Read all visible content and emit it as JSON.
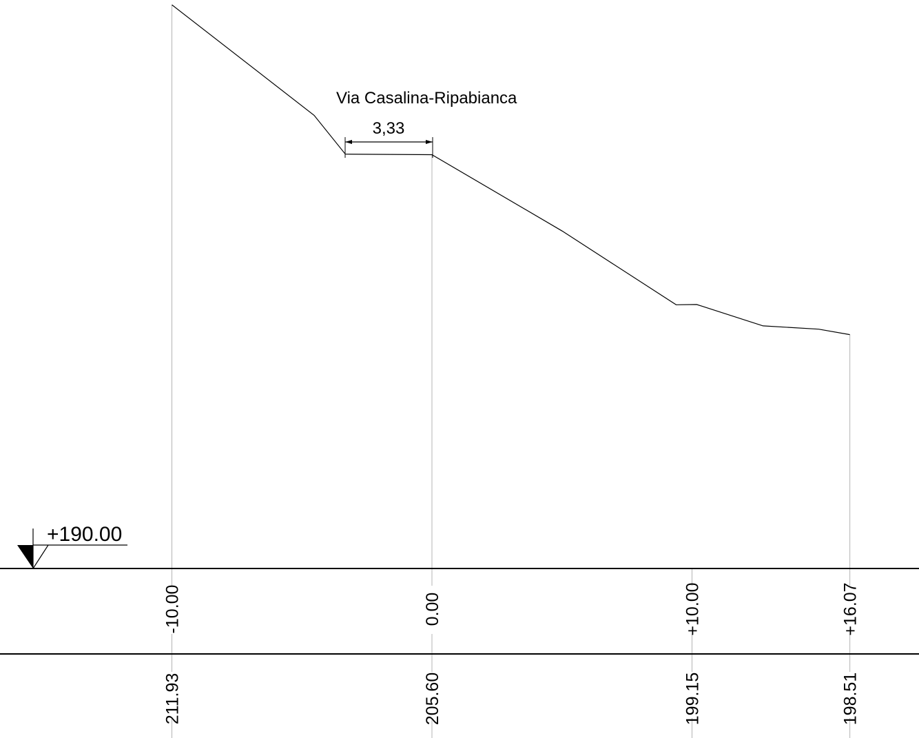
{
  "section": {
    "road_name": "Via Casalina-Ripabianca",
    "width_dimension": "3,33",
    "reference_level": "+190.00",
    "stations": [
      {
        "distance": -10.0,
        "distance_label": "-10.00",
        "elevation_label": "211.93"
      },
      {
        "distance": 0.0,
        "distance_label": "0.00",
        "elevation_label": "205.60"
      },
      {
        "distance": 10.0,
        "distance_label": "+10.00",
        "elevation_label": "199.15"
      },
      {
        "distance": 16.07,
        "distance_label": "+16.07",
        "elevation_label": "198.51"
      }
    ],
    "terrain_profile": [
      {
        "distance": -10.0,
        "elevation": 211.93
      },
      {
        "distance": -4.53,
        "elevation": 207.63
      },
      {
        "distance": -3.33,
        "elevation": 206.12
      },
      {
        "distance": 0.0,
        "elevation": 206.1
      },
      {
        "distance": 5.01,
        "elevation": 203.13
      },
      {
        "distance": 9.39,
        "elevation": 200.26
      },
      {
        "distance": 10.18,
        "elevation": 200.27
      },
      {
        "distance": 12.73,
        "elevation": 199.44
      },
      {
        "distance": 14.87,
        "elevation": 199.31
      },
      {
        "distance": 16.07,
        "elevation": 199.1
      }
    ]
  },
  "colors": {
    "line": "#000000",
    "guide": "#b3b3b3"
  }
}
